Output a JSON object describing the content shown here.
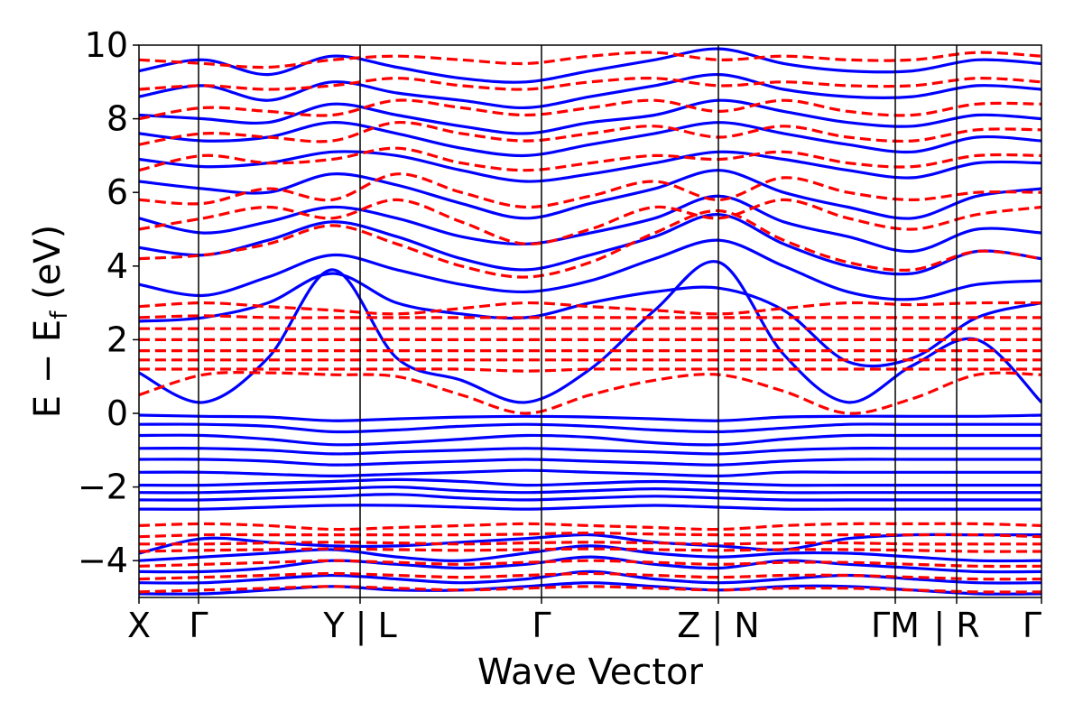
{
  "chart_data": {
    "type": "line",
    "xlabel": "Wave Vector",
    "ylabel_main": "E − E",
    "ylabel_sub": "f",
    "ylabel_unit": " (eV)",
    "ylim": [
      -5,
      10
    ],
    "yticks": [
      {
        "value": -4,
        "label": "−4"
      },
      {
        "value": -2,
        "label": "−2"
      },
      {
        "value": 0,
        "label": "0"
      },
      {
        "value": 2,
        "label": "2"
      },
      {
        "value": 4,
        "label": "4"
      },
      {
        "value": 6,
        "label": "6"
      },
      {
        "value": 8,
        "label": "8"
      },
      {
        "value": 10,
        "label": "10"
      }
    ],
    "kpath": [
      {
        "label": "X",
        "pos": 0.0
      },
      {
        "label": "Γ",
        "pos": 0.066
      },
      {
        "label": "Y | L",
        "pos": 0.245
      },
      {
        "label": "Γ",
        "pos": 0.446
      },
      {
        "label": "Z | N",
        "pos": 0.642
      },
      {
        "label": "ΓM",
        "pos": 0.838
      },
      {
        "label": "| R",
        "pos": 0.906
      },
      {
        "label": "Γ",
        "pos": 1.0
      }
    ],
    "divider_positions": [
      0.066,
      0.245,
      0.446,
      0.642,
      0.838,
      0.906
    ],
    "series": [
      {
        "style": "solid",
        "color": "#0000ff",
        "bands": [
          [
            -4.9,
            -4.9,
            -4.8,
            -4.7,
            -4.8,
            -4.8,
            -4.7,
            -4.6,
            -4.7,
            -4.8,
            -4.7,
            -4.7,
            -4.8,
            -4.9,
            -4.9
          ],
          [
            -4.6,
            -4.6,
            -4.5,
            -4.4,
            -4.5,
            -4.6,
            -4.5,
            -4.3,
            -4.5,
            -4.6,
            -4.5,
            -4.4,
            -4.5,
            -4.6,
            -4.6
          ],
          [
            -4.3,
            -4.3,
            -4.2,
            -4.0,
            -4.1,
            -4.2,
            -4.1,
            -3.9,
            -4.1,
            -4.2,
            -4.0,
            -4.1,
            -4.2,
            -4.3,
            -4.3
          ],
          [
            -4.0,
            -3.9,
            -3.8,
            -3.7,
            -3.9,
            -4.0,
            -3.8,
            -3.6,
            -3.8,
            -3.9,
            -3.8,
            -3.8,
            -3.9,
            -4.0,
            -4.0
          ],
          [
            -3.8,
            -3.4,
            -3.5,
            -3.6,
            -3.6,
            -3.5,
            -3.4,
            -3.3,
            -3.5,
            -3.6,
            -3.7,
            -3.4,
            -3.3,
            -3.3,
            -3.3
          ],
          [
            -2.6,
            -2.6,
            -2.55,
            -2.5,
            -2.5,
            -2.55,
            -2.6,
            -2.55,
            -2.5,
            -2.55,
            -2.6,
            -2.6,
            -2.6,
            -2.6,
            -2.6
          ],
          [
            -2.35,
            -2.35,
            -2.3,
            -2.25,
            -2.2,
            -2.3,
            -2.35,
            -2.3,
            -2.25,
            -2.3,
            -2.35,
            -2.35,
            -2.35,
            -2.35,
            -2.35
          ],
          [
            -2.15,
            -2.15,
            -2.1,
            -2.05,
            -2.0,
            -2.1,
            -2.15,
            -2.1,
            -2.05,
            -2.1,
            -2.15,
            -2.15,
            -2.15,
            -2.15,
            -2.15
          ],
          [
            -1.95,
            -1.95,
            -1.9,
            -1.85,
            -1.8,
            -1.85,
            -1.95,
            -1.9,
            -1.85,
            -1.9,
            -1.95,
            -1.95,
            -1.95,
            -1.95,
            -1.95
          ],
          [
            -1.6,
            -1.6,
            -1.65,
            -1.7,
            -1.65,
            -1.6,
            -1.55,
            -1.6,
            -1.65,
            -1.7,
            -1.6,
            -1.6,
            -1.6,
            -1.6,
            -1.6
          ],
          [
            -1.25,
            -1.25,
            -1.3,
            -1.4,
            -1.35,
            -1.3,
            -1.25,
            -1.3,
            -1.35,
            -1.4,
            -1.3,
            -1.25,
            -1.25,
            -1.25,
            -1.25
          ],
          [
            -0.95,
            -0.95,
            -1.0,
            -1.1,
            -1.05,
            -1.0,
            -0.95,
            -1.0,
            -1.05,
            -1.1,
            -1.0,
            -0.95,
            -0.95,
            -0.95,
            -0.95
          ],
          [
            -0.6,
            -0.6,
            -0.7,
            -0.85,
            -0.8,
            -0.7,
            -0.6,
            -0.65,
            -0.8,
            -0.85,
            -0.7,
            -0.6,
            -0.6,
            -0.6,
            -0.6
          ],
          [
            -0.3,
            -0.3,
            -0.35,
            -0.5,
            -0.45,
            -0.35,
            -0.3,
            -0.35,
            -0.45,
            -0.5,
            -0.4,
            -0.3,
            -0.3,
            -0.3,
            -0.3
          ],
          [
            -0.05,
            -0.08,
            -0.1,
            -0.2,
            -0.15,
            -0.1,
            -0.08,
            -0.1,
            -0.15,
            -0.2,
            -0.1,
            -0.08,
            -0.08,
            -0.08,
            -0.05
          ],
          [
            1.1,
            0.3,
            1.5,
            3.9,
            1.5,
            0.9,
            0.3,
            1.2,
            2.8,
            4.1,
            1.6,
            0.3,
            1.3,
            2.0,
            0.3
          ],
          [
            2.5,
            2.6,
            3.0,
            3.8,
            3.0,
            2.7,
            2.6,
            3.0,
            3.3,
            3.4,
            2.8,
            1.4,
            1.5,
            2.6,
            3.0
          ],
          [
            3.5,
            3.2,
            3.7,
            4.3,
            3.9,
            3.5,
            3.3,
            3.6,
            4.2,
            4.7,
            4.0,
            3.3,
            3.1,
            3.5,
            3.6
          ],
          [
            4.5,
            4.3,
            4.7,
            5.2,
            4.8,
            4.2,
            3.9,
            4.3,
            4.8,
            5.4,
            4.6,
            4.0,
            3.8,
            4.4,
            4.2
          ],
          [
            5.3,
            4.9,
            5.2,
            5.6,
            5.3,
            4.8,
            4.6,
            4.9,
            5.3,
            5.9,
            5.2,
            4.8,
            4.4,
            5.0,
            4.9
          ],
          [
            6.3,
            6.1,
            6.0,
            6.5,
            6.2,
            5.7,
            5.3,
            5.7,
            6.1,
            6.6,
            6.0,
            5.6,
            5.3,
            5.9,
            6.1
          ],
          [
            6.9,
            6.7,
            6.8,
            7.1,
            7.0,
            6.6,
            6.3,
            6.5,
            6.8,
            7.1,
            6.9,
            6.6,
            6.4,
            6.8,
            6.8
          ],
          [
            7.6,
            7.4,
            7.5,
            7.9,
            7.6,
            7.2,
            7.0,
            7.3,
            7.6,
            7.9,
            7.6,
            7.3,
            7.1,
            7.5,
            7.4
          ],
          [
            8.1,
            8.0,
            7.9,
            8.4,
            8.1,
            7.8,
            7.6,
            7.9,
            8.1,
            8.5,
            8.2,
            7.9,
            7.8,
            8.1,
            8.0
          ],
          [
            8.6,
            8.9,
            8.5,
            9.0,
            8.7,
            8.5,
            8.3,
            8.6,
            8.9,
            9.2,
            8.8,
            8.6,
            8.6,
            8.9,
            8.8
          ],
          [
            9.3,
            9.6,
            9.2,
            9.7,
            9.4,
            9.1,
            9.0,
            9.3,
            9.6,
            9.9,
            9.5,
            9.3,
            9.3,
            9.6,
            9.5
          ]
        ]
      },
      {
        "style": "dashed",
        "color": "#ff0000",
        "bands": [
          [
            -4.85,
            -4.8,
            -4.75,
            -4.7,
            -4.75,
            -4.8,
            -4.75,
            -4.7,
            -4.75,
            -4.8,
            -4.75,
            -4.75,
            -4.8,
            -4.85,
            -4.85
          ],
          [
            -4.5,
            -4.45,
            -4.4,
            -4.35,
            -4.4,
            -4.45,
            -4.4,
            -4.35,
            -4.4,
            -4.45,
            -4.4,
            -4.4,
            -4.45,
            -4.5,
            -4.5
          ],
          [
            -4.15,
            -4.1,
            -4.05,
            -4.0,
            -4.05,
            -4.1,
            -4.05,
            -4.0,
            -4.05,
            -4.1,
            -4.05,
            -4.05,
            -4.1,
            -4.15,
            -4.15
          ],
          [
            -3.75,
            -3.72,
            -3.7,
            -3.68,
            -3.7,
            -3.72,
            -3.7,
            -3.68,
            -3.7,
            -3.72,
            -3.7,
            -3.7,
            -3.72,
            -3.75,
            -3.75
          ],
          [
            -3.55,
            -3.55,
            -3.52,
            -3.5,
            -3.52,
            -3.55,
            -3.52,
            -3.5,
            -3.52,
            -3.55,
            -3.52,
            -3.52,
            -3.55,
            -3.55,
            -3.55
          ],
          [
            -3.35,
            -3.3,
            -3.3,
            -3.3,
            -3.3,
            -3.3,
            -3.28,
            -3.25,
            -3.28,
            -3.3,
            -3.3,
            -3.3,
            -3.3,
            -3.3,
            -3.35
          ],
          [
            -3.05,
            -3.0,
            -3.05,
            -3.15,
            -3.1,
            -3.05,
            -3.0,
            -3.05,
            -3.1,
            -3.15,
            -3.05,
            -3.0,
            -3.0,
            -3.0,
            -3.05
          ],
          [
            0.5,
            1.05,
            1.1,
            1.05,
            1.0,
            0.5,
            0.0,
            0.5,
            0.9,
            1.05,
            0.6,
            0.0,
            0.4,
            1.05,
            1.05
          ],
          [
            1.2,
            1.2,
            1.2,
            1.2,
            1.2,
            1.2,
            1.15,
            1.2,
            1.2,
            1.2,
            1.2,
            1.2,
            1.2,
            1.2,
            1.2
          ],
          [
            1.45,
            1.45,
            1.45,
            1.45,
            1.45,
            1.45,
            1.45,
            1.45,
            1.45,
            1.45,
            1.45,
            1.45,
            1.45,
            1.45,
            1.45
          ],
          [
            1.7,
            1.7,
            1.7,
            1.7,
            1.7,
            1.7,
            1.7,
            1.7,
            1.7,
            1.7,
            1.7,
            1.7,
            1.7,
            1.7,
            1.7
          ],
          [
            2.0,
            2.0,
            2.0,
            2.0,
            2.0,
            2.0,
            2.0,
            2.0,
            2.0,
            2.0,
            2.0,
            2.0,
            2.0,
            2.0,
            2.0
          ],
          [
            2.3,
            2.3,
            2.3,
            2.3,
            2.3,
            2.3,
            2.3,
            2.3,
            2.3,
            2.3,
            2.3,
            2.3,
            2.3,
            2.3,
            2.3
          ],
          [
            2.6,
            2.65,
            2.6,
            2.6,
            2.6,
            2.6,
            2.6,
            2.6,
            2.6,
            2.6,
            2.6,
            2.6,
            2.6,
            2.6,
            2.6
          ],
          [
            2.9,
            3.0,
            2.9,
            2.8,
            2.7,
            2.85,
            3.0,
            2.9,
            2.8,
            2.7,
            2.85,
            3.0,
            2.95,
            3.0,
            3.0
          ],
          [
            4.2,
            4.3,
            4.6,
            5.1,
            4.6,
            4.0,
            3.7,
            4.1,
            4.9,
            5.5,
            4.7,
            4.1,
            3.9,
            4.4,
            4.2
          ],
          [
            5.0,
            5.3,
            5.6,
            5.3,
            5.8,
            5.2,
            4.6,
            5.0,
            5.6,
            5.3,
            5.8,
            5.3,
            5.0,
            5.4,
            5.6
          ],
          [
            5.8,
            5.7,
            6.1,
            5.8,
            6.5,
            6.0,
            5.6,
            5.9,
            6.3,
            5.8,
            6.4,
            6.0,
            5.8,
            6.0,
            6.0
          ],
          [
            6.6,
            7.0,
            6.8,
            6.9,
            7.2,
            6.8,
            6.6,
            6.8,
            7.0,
            6.9,
            7.1,
            6.8,
            6.7,
            7.0,
            7.0
          ],
          [
            7.3,
            7.6,
            7.5,
            7.4,
            7.9,
            7.6,
            7.4,
            7.6,
            7.8,
            7.5,
            7.8,
            7.5,
            7.4,
            7.7,
            7.7
          ],
          [
            8.0,
            8.3,
            8.2,
            8.1,
            8.5,
            8.3,
            8.1,
            8.3,
            8.5,
            8.2,
            8.5,
            8.2,
            8.1,
            8.4,
            8.4
          ],
          [
            8.8,
            8.9,
            8.8,
            8.9,
            9.1,
            8.9,
            8.8,
            9.0,
            9.1,
            8.9,
            9.0,
            8.9,
            8.9,
            9.1,
            9.0
          ],
          [
            9.6,
            9.5,
            9.4,
            9.6,
            9.7,
            9.6,
            9.5,
            9.7,
            9.8,
            9.6,
            9.7,
            9.6,
            9.6,
            9.8,
            9.7
          ]
        ]
      }
    ]
  }
}
